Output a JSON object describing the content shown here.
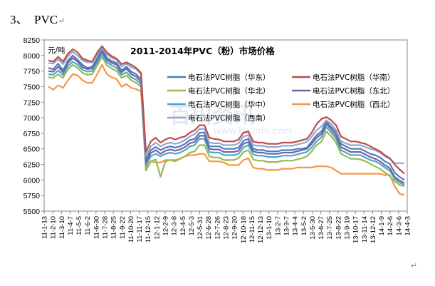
{
  "heading": {
    "number": "3、",
    "text": "PVC",
    "mark": "↵"
  },
  "para_mark": "↵",
  "chart_data": {
    "type": "line",
    "title": "2011-2014年PVC（粉）市场价格",
    "ylabel": "元/吨",
    "xlabel": "",
    "ylim": [
      5500,
      8250
    ],
    "yticks": [
      5500,
      5750,
      6000,
      6250,
      6500,
      6750,
      7000,
      7250,
      7500,
      7750,
      8000,
      8250
    ],
    "grid": false,
    "legend_position": "top-right",
    "x_tick_labels": [
      "11-1-13",
      "11-2-10",
      "11-3-10",
      "11-4-7",
      "11-5-5",
      "11-6-2",
      "11-6-30",
      "11-7-28",
      "11-8-25",
      "11-9-22",
      "11-10-20",
      "11-11-17",
      "11-12-15",
      "12-1-12",
      "12-2-9",
      "12-3-8",
      "12-4-5",
      "12-5-3",
      "12-5-31",
      "12-6-28",
      "12-7-26",
      "12-8-23",
      "12-9-20",
      "12-10-18",
      "12-11-15",
      "12-12-13",
      "13-1-10",
      "13-2-7",
      "13-3-7",
      "13-4-4",
      "13-5-2",
      "13-5-30",
      "13-6-27",
      "13-7-25",
      "13-8-22",
      "13-9-19",
      "13-10-17",
      "13-11-14",
      "13-12-12",
      "14-1-9",
      "14-2-6",
      "14-3-6",
      "14-4-3"
    ],
    "series": [
      {
        "name": "电石法PVC树脂（华东）",
        "color": "#4a7ebb",
        "values": [
          7800,
          7780,
          7870,
          7760,
          7920,
          8000,
          7930,
          7850,
          7800,
          7820,
          7960,
          8100,
          7960,
          7910,
          7880,
          7760,
          7820,
          7740,
          7700,
          7620,
          6330,
          6480,
          6530,
          6480,
          6520,
          6540,
          6520,
          6540,
          6580,
          6640,
          6660,
          6760,
          6760,
          6540,
          6540,
          6540,
          6500,
          6500,
          6500,
          6520,
          6630,
          6660,
          6500,
          6480,
          6480,
          6460,
          6460,
          6460,
          6480,
          6480,
          6480,
          6500,
          6500,
          6520,
          6620,
          6720,
          6780,
          6940,
          6850,
          6760,
          6580,
          6540,
          6500,
          6500,
          6500,
          6460,
          6420,
          6400,
          6360,
          6300,
          6260,
          6120,
          6050,
          6000
        ]
      },
      {
        "name": "电石法PVC树脂（华南）",
        "color": "#be4b48",
        "values": [
          7920,
          7900,
          7980,
          7900,
          8030,
          8100,
          8050,
          7950,
          7920,
          7900,
          8050,
          8150,
          8050,
          7990,
          7950,
          7860,
          7890,
          7850,
          7800,
          7720,
          6450,
          6620,
          6680,
          6600,
          6650,
          6680,
          6650,
          6680,
          6700,
          6760,
          6800,
          6880,
          6880,
          6680,
          6660,
          6650,
          6620,
          6620,
          6620,
          6650,
          6760,
          6780,
          6620,
          6600,
          6600,
          6580,
          6580,
          6580,
          6600,
          6600,
          6600,
          6620,
          6640,
          6660,
          6760,
          6900,
          6980,
          7010,
          6960,
          6880,
          6700,
          6660,
          6620,
          6620,
          6600,
          6580,
          6540,
          6500,
          6460,
          6400,
          6350,
          6250,
          6170,
          6100
        ]
      },
      {
        "name": "电石法PVC树脂（华北）",
        "color": "#98b954",
        "values": [
          7650,
          7640,
          7700,
          7640,
          7780,
          7850,
          7800,
          7720,
          7690,
          7700,
          7840,
          7980,
          7840,
          7790,
          7750,
          7640,
          7680,
          7600,
          7560,
          7500,
          6150,
          6300,
          6330,
          6050,
          6300,
          6320,
          6300,
          6340,
          6380,
          6440,
          6460,
          6560,
          6560,
          6380,
          6360,
          6360,
          6320,
          6320,
          6320,
          6350,
          6450,
          6480,
          6330,
          6310,
          6310,
          6290,
          6290,
          6290,
          6310,
          6310,
          6310,
          6330,
          6350,
          6380,
          6460,
          6560,
          6620,
          6780,
          6700,
          6600,
          6420,
          6380,
          6340,
          6340,
          6330,
          6300,
          6260,
          6220,
          6180,
          6120,
          6060,
          5980,
          5920,
          5900
        ]
      },
      {
        "name": "电石法PVC树脂（东北）",
        "color": "#7d60a0",
        "values": [
          7750,
          7740,
          7820,
          7730,
          7880,
          7960,
          7900,
          7810,
          7780,
          7790,
          7930,
          8070,
          7930,
          7880,
          7850,
          7730,
          7790,
          7700,
          7660,
          7580,
          6280,
          6430,
          6480,
          6420,
          6470,
          6490,
          6470,
          6490,
          6530,
          6590,
          6610,
          6710,
          6710,
          6500,
          6490,
          6490,
          6450,
          6450,
          6450,
          6470,
          6580,
          6610,
          6460,
          6440,
          6440,
          6420,
          6420,
          6420,
          6440,
          6440,
          6440,
          6460,
          6480,
          6500,
          6580,
          6680,
          6740,
          6900,
          6810,
          6710,
          6530,
          6490,
          6450,
          6450,
          6450,
          6410,
          6370,
          6340,
          6300,
          6240,
          6190,
          6050,
          5990,
          5950
        ]
      },
      {
        "name": "电石法PVC树脂（华中）",
        "color": "#46aac5",
        "values": [
          7700,
          7690,
          7760,
          7690,
          7830,
          7900,
          7850,
          7770,
          7740,
          7750,
          7890,
          8030,
          7890,
          7840,
          7800,
          7690,
          7730,
          7650,
          7610,
          7540,
          6230,
          6380,
          6420,
          6380,
          6420,
          6440,
          6420,
          6440,
          6480,
          6540,
          6560,
          6660,
          6660,
          6450,
          6440,
          6440,
          6400,
          6400,
          6400,
          6420,
          6520,
          6560,
          6410,
          6390,
          6390,
          6370,
          6370,
          6370,
          6390,
          6390,
          6390,
          6410,
          6430,
          6450,
          6520,
          6620,
          6690,
          6850,
          6760,
          6660,
          6480,
          6440,
          6400,
          6400,
          6400,
          6360,
          6320,
          6300,
          6260,
          6200,
          6150,
          6020,
          5960,
          5920
        ]
      },
      {
        "name": "电石法PVC树脂（西北）",
        "color": "#f79646",
        "values": [
          7500,
          7450,
          7520,
          7480,
          7600,
          7700,
          7680,
          7600,
          7560,
          7560,
          7700,
          7850,
          7700,
          7650,
          7620,
          7500,
          7540,
          7480,
          7460,
          7420,
          6200,
          6300,
          6280,
          6280,
          6320,
          6320,
          6320,
          6340,
          6380,
          6400,
          6400,
          6420,
          6420,
          6300,
          6300,
          6300,
          6280,
          6240,
          6240,
          6240,
          6320,
          6350,
          6200,
          6180,
          6180,
          6160,
          6160,
          6160,
          6180,
          6180,
          6180,
          6200,
          6200,
          6200,
          6200,
          6220,
          6220,
          6220,
          6200,
          6150,
          6100,
          6100,
          6100,
          6100,
          6100,
          6100,
          6100,
          6100,
          6100,
          6080,
          6080,
          5900,
          5780,
          5760
        ]
      },
      {
        "name": "电石法PVC树脂（西南）",
        "color": "#94a7cf",
        "values": [
          7880,
          7870,
          7940,
          7860,
          7990,
          8060,
          8000,
          7920,
          7890,
          7890,
          8020,
          8120,
          8020,
          7960,
          7930,
          7820,
          7870,
          7810,
          7780,
          7700,
          6380,
          6540,
          6600,
          6540,
          6580,
          6600,
          6580,
          6600,
          6640,
          6700,
          6740,
          6820,
          6820,
          6600,
          6590,
          6590,
          6560,
          6560,
          6560,
          6590,
          6700,
          6720,
          6560,
          6550,
          6550,
          6530,
          6530,
          6530,
          6550,
          6550,
          6550,
          6570,
          6590,
          6610,
          6700,
          6800,
          6860,
          6960,
          6900,
          6800,
          6620,
          6590,
          6560,
          6560,
          6560,
          6530,
          6500,
          6480,
          6440,
          6380,
          6340,
          6270,
          6270,
          6270
        ]
      }
    ]
  },
  "watermark": {
    "main": "百川资讯",
    "sub": "www.baiinfo.com"
  }
}
